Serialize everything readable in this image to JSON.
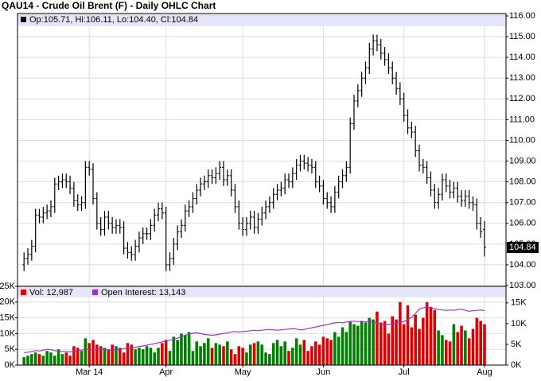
{
  "chart_data": [
    {
      "type": "ohlc",
      "title": "QAU14 - Crude Oil Brent (F) - Daily OHLC Chart",
      "legend_text": "Op:105.71, Hi:106.11, Lo:104.40, Cl:104.84",
      "last_price_label": "104.84",
      "color": "#000000",
      "open": [
        104.0,
        104.3,
        104.5,
        104.9,
        106.4,
        106.3,
        106.5,
        106.6,
        106.8,
        107.9,
        108.0,
        108.1,
        108.0,
        107.7,
        107.1,
        106.9,
        107.0,
        108.7,
        108.6,
        107.2,
        106.0,
        105.7,
        106.3,
        106.0,
        105.8,
        105.9,
        105.8,
        104.8,
        104.6,
        104.5,
        104.9,
        105.3,
        105.5,
        105.5,
        105.9,
        106.4,
        106.7,
        106.5,
        104.0,
        104.3,
        105.0,
        105.6,
        105.9,
        106.6,
        106.8,
        107.2,
        107.6,
        107.9,
        108.0,
        108.3,
        108.2,
        108.4,
        108.7,
        108.1,
        108.3,
        107.6,
        106.8,
        106.0,
        105.7,
        106.0,
        106.3,
        105.8,
        106.2,
        106.5,
        106.8,
        107.0,
        107.4,
        107.6,
        107.7,
        108.1,
        108.0,
        108.4,
        108.8,
        109.0,
        108.9,
        108.8,
        108.7,
        108.0,
        107.8,
        107.2,
        107.0,
        106.8,
        107.5,
        108.0,
        108.3,
        108.7,
        110.8,
        111.9,
        112.4,
        113.0,
        113.5,
        114.4,
        114.8,
        114.6,
        114.2,
        113.9,
        113.5,
        113.0,
        112.5,
        112.0,
        111.2,
        110.6,
        110.4,
        109.5,
        108.8,
        108.7,
        108.2,
        107.6,
        107.0,
        107.4,
        108.1,
        107.8,
        107.5,
        107.7,
        107.3,
        107.1,
        107.3,
        107.0,
        106.9,
        106.0,
        105.71
      ],
      "high": [
        104.6,
        104.8,
        105.2,
        106.7,
        106.7,
        106.8,
        106.9,
        107.1,
        108.2,
        108.3,
        108.4,
        108.4,
        108.3,
        108.0,
        107.4,
        107.3,
        109.0,
        109.0,
        108.9,
        107.5,
        106.3,
        106.6,
        106.6,
        106.3,
        106.2,
        106.2,
        106.1,
        105.1,
        104.9,
        105.2,
        105.6,
        105.8,
        105.8,
        106.2,
        106.7,
        107.0,
        107.0,
        106.8,
        104.6,
        105.3,
        105.9,
        106.2,
        106.9,
        107.1,
        107.5,
        107.9,
        108.2,
        108.3,
        108.6,
        108.6,
        108.7,
        109.0,
        109.0,
        108.6,
        108.6,
        107.9,
        107.1,
        106.3,
        106.3,
        106.6,
        106.6,
        106.5,
        106.8,
        107.1,
        107.3,
        107.7,
        107.9,
        108.0,
        108.4,
        108.4,
        108.7,
        109.1,
        109.3,
        109.3,
        109.2,
        109.1,
        109.0,
        108.3,
        108.1,
        107.5,
        107.3,
        107.8,
        108.3,
        108.6,
        109.0,
        111.1,
        112.2,
        112.7,
        113.3,
        113.8,
        114.7,
        115.1,
        115.1,
        114.9,
        114.5,
        114.2,
        113.8,
        113.3,
        112.8,
        112.3,
        111.5,
        110.9,
        110.7,
        109.8,
        109.1,
        109.0,
        108.5,
        107.9,
        107.7,
        108.4,
        108.4,
        108.1,
        108.0,
        108.0,
        107.6,
        107.6,
        107.6,
        107.3,
        107.2,
        106.3,
        106.11
      ],
      "low": [
        103.7,
        104.0,
        104.2,
        104.6,
        106.0,
        106.0,
        106.2,
        106.3,
        106.5,
        107.6,
        107.7,
        107.7,
        107.4,
        106.8,
        106.6,
        106.6,
        106.7,
        108.3,
        106.9,
        105.7,
        105.4,
        105.4,
        105.7,
        105.5,
        105.5,
        105.5,
        104.5,
        104.3,
        104.2,
        104.2,
        104.6,
        105.0,
        105.2,
        105.2,
        105.6,
        106.1,
        106.2,
        103.7,
        103.7,
        104.0,
        104.7,
        105.3,
        105.6,
        106.3,
        106.5,
        106.9,
        107.3,
        107.6,
        107.7,
        107.9,
        107.9,
        108.1,
        107.8,
        107.8,
        107.3,
        106.5,
        105.7,
        105.4,
        105.4,
        105.7,
        105.5,
        105.5,
        105.9,
        106.2,
        106.5,
        106.7,
        107.1,
        107.3,
        107.4,
        107.7,
        107.7,
        108.1,
        108.5,
        108.6,
        108.5,
        108.4,
        107.7,
        107.5,
        106.9,
        106.7,
        106.5,
        106.5,
        107.2,
        107.7,
        108.0,
        108.4,
        110.5,
        111.6,
        112.1,
        112.7,
        113.2,
        114.1,
        114.3,
        113.9,
        113.6,
        113.2,
        112.7,
        112.2,
        111.7,
        110.9,
        110.3,
        110.1,
        109.2,
        108.5,
        108.4,
        107.9,
        107.3,
        106.7,
        106.7,
        107.1,
        107.5,
        107.2,
        107.2,
        107.0,
        106.8,
        106.8,
        106.7,
        106.6,
        105.7,
        105.3,
        104.4
      ],
      "close": [
        104.3,
        104.5,
        104.9,
        106.4,
        106.3,
        106.5,
        106.6,
        106.8,
        107.9,
        108.0,
        108.1,
        108.0,
        107.7,
        107.1,
        106.9,
        107.0,
        108.7,
        108.6,
        107.2,
        106.0,
        105.7,
        106.3,
        106.0,
        105.8,
        105.9,
        105.8,
        104.8,
        104.6,
        104.5,
        104.9,
        105.3,
        105.5,
        105.5,
        105.9,
        106.4,
        106.7,
        106.5,
        104.0,
        104.3,
        105.0,
        105.6,
        105.9,
        106.6,
        106.8,
        107.2,
        107.6,
        107.9,
        108.0,
        108.3,
        108.2,
        108.4,
        108.7,
        108.1,
        108.3,
        107.6,
        106.8,
        106.0,
        105.7,
        106.0,
        106.3,
        105.8,
        106.2,
        106.5,
        106.8,
        107.0,
        107.4,
        107.6,
        107.7,
        108.1,
        108.0,
        108.4,
        108.8,
        109.0,
        108.9,
        108.8,
        108.7,
        108.0,
        107.8,
        107.2,
        107.0,
        106.8,
        107.5,
        108.0,
        108.3,
        108.7,
        110.8,
        111.9,
        112.4,
        113.0,
        113.5,
        114.4,
        114.8,
        114.6,
        114.2,
        113.9,
        113.5,
        113.0,
        112.5,
        112.0,
        111.2,
        110.6,
        110.4,
        109.5,
        108.8,
        108.7,
        108.2,
        107.6,
        107.0,
        107.4,
        108.1,
        107.8,
        107.5,
        107.7,
        107.3,
        107.1,
        107.3,
        107.0,
        106.9,
        106.0,
        105.6,
        104.84
      ],
      "xlim": [
        -1.7,
        125.6
      ],
      "xticks": [
        {
          "value": 17,
          "label": "Mar 14"
        },
        {
          "value": 37,
          "label": "Apr"
        },
        {
          "value": 57,
          "label": "May"
        },
        {
          "value": 78,
          "label": "Jun"
        },
        {
          "value": 99,
          "label": "Jul"
        },
        {
          "value": 120,
          "label": "Aug"
        }
      ],
      "ylim": [
        103,
        116
      ],
      "yticks": [
        {
          "value": 103,
          "label": "103.00"
        },
        {
          "value": 104,
          "label": "104.00"
        },
        {
          "value": 105,
          "label": "105.00"
        },
        {
          "value": 106,
          "label": "106.00"
        },
        {
          "value": 107,
          "label": "107.00"
        },
        {
          "value": 108,
          "label": "108.00"
        },
        {
          "value": 109,
          "label": "109.00"
        },
        {
          "value": 110,
          "label": "110.00"
        },
        {
          "value": 111,
          "label": "111.00"
        },
        {
          "value": 112,
          "label": "112.00"
        },
        {
          "value": 113,
          "label": "113.00"
        },
        {
          "value": 114,
          "label": "114.00"
        },
        {
          "value": 115,
          "label": "115.00"
        },
        {
          "value": 116,
          "label": "116.00"
        }
      ],
      "grid": true
    },
    {
      "type": "bar",
      "series": [
        {
          "name": "Vol: 12,987",
          "color": "#dd0000",
          "up_color": "#008000",
          "down_color": "#dd0000",
          "values": [
            2500,
            3000,
            3500,
            4000,
            3500,
            3000,
            4500,
            4000,
            3000,
            5000,
            3500,
            4000,
            3000,
            6000,
            5500,
            4500,
            8500,
            7000,
            8000,
            6500,
            6000,
            5500,
            5000,
            6500,
            6000,
            5500,
            4000,
            7000,
            6500,
            5000,
            5500,
            5000,
            6000,
            5500,
            4000,
            5500,
            7000,
            8000,
            4500,
            9000,
            8000,
            10000,
            9500,
            10500,
            4500,
            7500,
            6000,
            7000,
            8500,
            5500,
            7000,
            6500,
            6000,
            7500,
            5000,
            3500,
            6000,
            5500,
            4000,
            6500,
            7000,
            7500,
            6500,
            4000,
            3500,
            7000,
            8000,
            6000,
            7500,
            4500,
            5500,
            8500,
            6500,
            8000,
            4500,
            6000,
            7500,
            6500,
            9000,
            8500,
            8000,
            10500,
            9000,
            12000,
            10500,
            14000,
            13000,
            12500,
            14000,
            13500,
            15000,
            14500,
            17000,
            13500,
            14000,
            10000,
            15500,
            14500,
            20000,
            13000,
            19000,
            12000,
            16000,
            11500,
            15000,
            20000,
            18500,
            17500,
            11000,
            9500,
            8000,
            7500,
            13000,
            10500,
            12500,
            11000,
            8500,
            11500,
            15000,
            14000,
            12987
          ]
        },
        {
          "name": "Open Interest: 13,143",
          "type": "line",
          "axis": "y2",
          "color": "#9933cc",
          "values": [
            3000,
            3100,
            3300,
            3500,
            3400,
            3600,
            3800,
            3700,
            3500,
            3400,
            3300,
            3300,
            3200,
            3300,
            3500,
            3600,
            3800,
            3800,
            3700,
            3800,
            3900,
            3800,
            3600,
            3500,
            3600,
            3800,
            4000,
            4200,
            4100,
            4300,
            4500,
            4600,
            4800,
            5000,
            5200,
            5400,
            5600,
            5800,
            6000,
            6200,
            6500,
            6800,
            7200,
            7500,
            7700,
            7800,
            7600,
            7400,
            7300,
            7200,
            7300,
            7500,
            7600,
            7800,
            8000,
            8100,
            8000,
            8100,
            8200,
            8300,
            8400,
            8300,
            8400,
            8500,
            8600,
            8500,
            8400,
            8500,
            8600,
            8700,
            8800,
            8700,
            8500,
            8600,
            8800,
            9000,
            9200,
            9400,
            9600,
            9800,
            10000,
            10200,
            10300,
            10200,
            10400,
            10500,
            10600,
            10500,
            10600,
            10400,
            10500,
            10300,
            10100,
            9800,
            9700,
            9800,
            10000,
            10100,
            10300,
            10500,
            11000,
            11500,
            12500,
            13500,
            13800,
            14000,
            13900,
            13600,
            13400,
            13300,
            13200,
            13300,
            13200,
            13400,
            13500,
            13200,
            13000,
            13100,
            13200,
            13300,
            13143
          ]
        }
      ],
      "ylim": [
        0,
        25000
      ],
      "yticks": [
        {
          "value": 0,
          "label": "0K"
        },
        {
          "value": 5000,
          "label": "5K"
        },
        {
          "value": 10000,
          "label": "10K"
        },
        {
          "value": 15000,
          "label": "15K"
        },
        {
          "value": 20000,
          "label": "20K"
        },
        {
          "value": 25000,
          "label": "25K"
        }
      ],
      "y2lim": [
        0,
        19000
      ],
      "y2ticks": [
        {
          "value": 0,
          "label": "0K"
        },
        {
          "value": 5000,
          "label": "5K"
        },
        {
          "value": 10000,
          "label": "10K"
        },
        {
          "value": 15000,
          "label": "15K"
        }
      ],
      "grid": true
    }
  ]
}
